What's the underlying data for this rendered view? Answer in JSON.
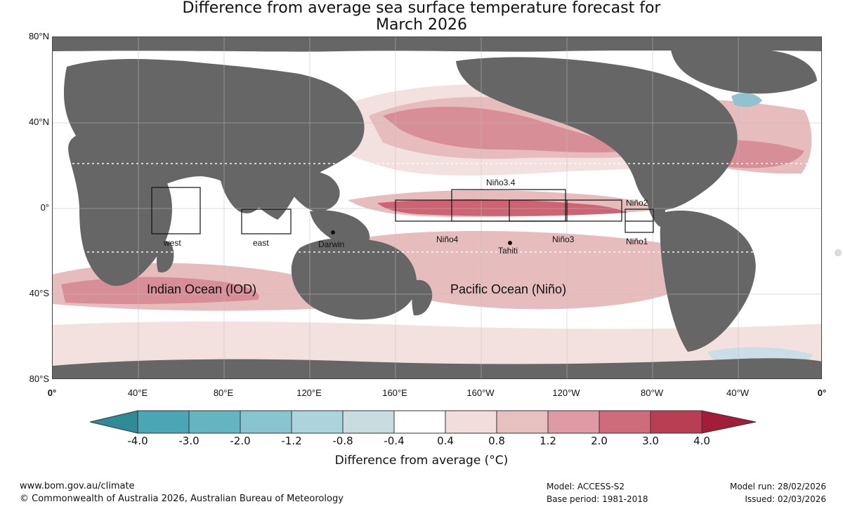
{
  "title": {
    "line1": "Difference from average sea surface temperature forecast for",
    "line2": "March 2026"
  },
  "axes": {
    "latitudes": [
      "80°N",
      "40°N",
      "0°",
      "40°S",
      "80°S"
    ],
    "longitudes": [
      "0°",
      "40°E",
      "80°E",
      "120°E",
      "160°E",
      "160°W",
      "120°W",
      "80°W",
      "40°W",
      "0°"
    ]
  },
  "map": {
    "regions": {
      "nino34": "Niño3.4",
      "nino4": "Niño4",
      "nino3": "Niño3",
      "nino2": "Niño2",
      "nino1": "Niño1",
      "west": "west",
      "east": "east"
    },
    "points": {
      "darwin": "Darwin",
      "tahiti": "Tahiti"
    },
    "ocean_labels": {
      "indian": "Indian Ocean (IOD)",
      "pacific": "Pacific Ocean (Niño)"
    },
    "colors": {
      "land": "#666666",
      "ocean_neutral": "#ffffff",
      "warm_light": "#f3e1e0",
      "warm_medium": "#e6bcbc",
      "warm_strong": "#d78e96",
      "warm_deep": "#cd6474",
      "cool_light": "#c9dfe5",
      "cool_medium": "#8fc3cf"
    },
    "icons": {
      "point_marker": "dot-icon",
      "side_control": "chevron-right-icon"
    }
  },
  "colorbar": {
    "label": "Difference from average (°C)",
    "ticks": [
      "-4.0",
      "-3.0",
      "-2.0",
      "-1.2",
      "-0.8",
      "-0.4",
      "0.4",
      "0.8",
      "1.2",
      "2.0",
      "3.0",
      "4.0"
    ],
    "colors": [
      "#2f8b98",
      "#4aa6b5",
      "#65b4c2",
      "#88c5d1",
      "#abd4dc",
      "#c9dde1",
      "#ffffff",
      "#f2dcdc",
      "#e7c0c0",
      "#df9aa5",
      "#cf6b7b",
      "#b93d53",
      "#a31d3a"
    ]
  },
  "footer": {
    "website": "www.bom.gov.au/climate",
    "copyright": "© Commonwealth of Australia 2026, Australian Bureau of Meteorology",
    "model": "Model: ACCESS-S2",
    "base_period": "Base period: 1981-2018",
    "model_run": "Model run: 28/02/2026",
    "issued": "Issued: 02/03/2026"
  }
}
